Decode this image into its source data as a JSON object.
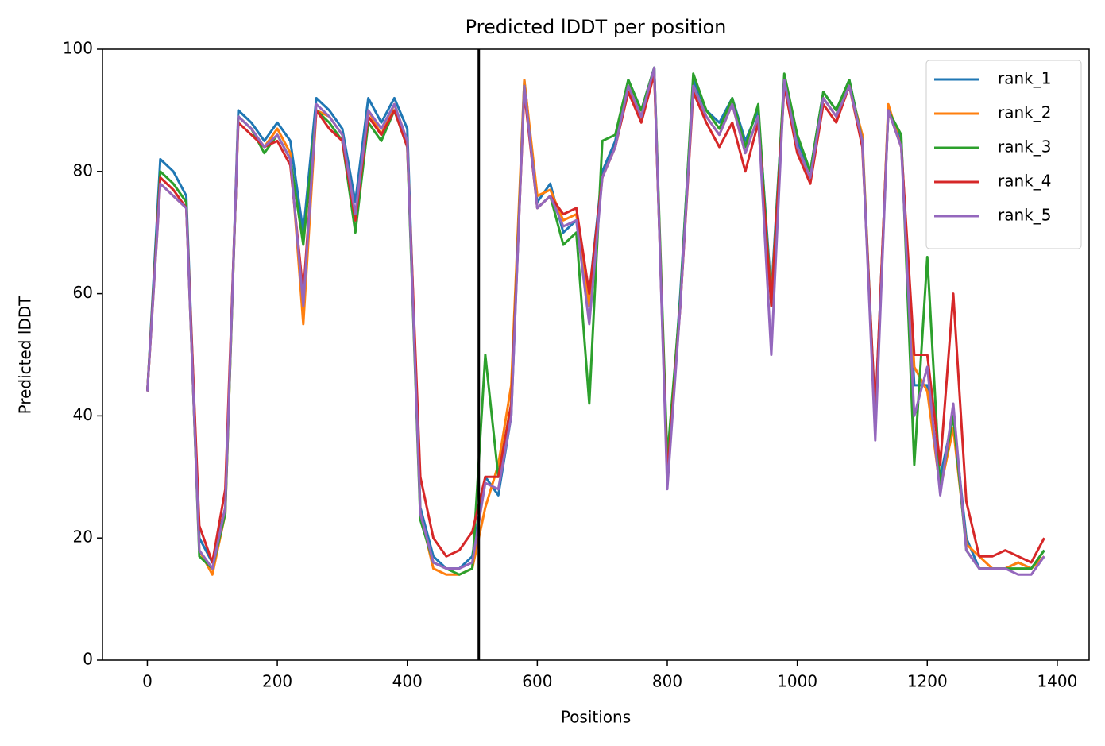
{
  "chart_data": {
    "type": "line",
    "title": "Predicted lDDT per position",
    "xlabel": "Positions",
    "ylabel": "Predicted lDDT",
    "x": [
      0,
      20,
      40,
      60,
      80,
      100,
      120,
      140,
      160,
      180,
      200,
      220,
      240,
      260,
      280,
      300,
      320,
      340,
      360,
      380,
      400,
      420,
      440,
      460,
      480,
      500,
      520,
      540,
      560,
      580,
      600,
      620,
      640,
      660,
      680,
      700,
      720,
      740,
      760,
      780,
      800,
      820,
      840,
      860,
      880,
      900,
      920,
      940,
      960,
      980,
      1000,
      1020,
      1040,
      1060,
      1080,
      1100,
      1120,
      1140,
      1160,
      1180,
      1200,
      1220,
      1240,
      1260,
      1280,
      1300,
      1320,
      1340,
      1360,
      1380
    ],
    "series": [
      {
        "name": "rank_1",
        "color": "#1f77b4",
        "values": [
          44,
          82,
          80,
          76,
          20,
          16,
          25,
          90,
          88,
          85,
          88,
          85,
          70,
          92,
          90,
          87,
          75,
          92,
          88,
          92,
          87,
          25,
          17,
          15,
          15,
          17,
          30,
          27,
          40,
          95,
          75,
          78,
          70,
          72,
          60,
          80,
          85,
          95,
          90,
          97,
          30,
          60,
          95,
          90,
          88,
          92,
          85,
          90,
          60,
          95,
          85,
          80,
          93,
          90,
          95,
          85,
          40,
          90,
          85,
          45,
          45,
          30,
          40,
          20,
          15,
          15,
          15,
          16,
          15,
          18
        ]
      },
      {
        "name": "rank_2",
        "color": "#ff7f0e",
        "values": [
          44,
          78,
          76,
          74,
          18,
          14,
          24,
          89,
          87,
          84,
          87,
          83,
          55,
          90,
          89,
          86,
          72,
          90,
          86,
          91,
          85,
          24,
          15,
          14,
          14,
          15,
          25,
          32,
          45,
          95,
          76,
          77,
          72,
          73,
          58,
          79,
          84,
          94,
          89,
          96,
          31,
          58,
          94,
          89,
          86,
          91,
          83,
          89,
          59,
          94,
          84,
          79,
          92,
          89,
          94,
          86,
          38,
          91,
          84,
          48,
          44,
          28,
          38,
          19,
          17,
          15,
          15,
          16,
          15,
          17
        ]
      },
      {
        "name": "rank_3",
        "color": "#2ca02c",
        "values": [
          44,
          80,
          78,
          75,
          17,
          15,
          24,
          89,
          87,
          83,
          86,
          82,
          68,
          90,
          88,
          85,
          70,
          88,
          85,
          90,
          84,
          23,
          16,
          15,
          14,
          15,
          50,
          30,
          42,
          94,
          74,
          76,
          68,
          70,
          42,
          85,
          86,
          95,
          90,
          97,
          33,
          59,
          96,
          90,
          87,
          92,
          84,
          91,
          58,
          96,
          86,
          80,
          93,
          90,
          95,
          85,
          38,
          90,
          86,
          32,
          66,
          28,
          40,
          18,
          15,
          15,
          15,
          15,
          15,
          18
        ]
      },
      {
        "name": "rank_4",
        "color": "#d62728",
        "values": [
          44,
          79,
          77,
          74,
          22,
          16,
          28,
          88,
          86,
          84,
          85,
          81,
          60,
          90,
          87,
          85,
          72,
          89,
          86,
          90,
          84,
          30,
          20,
          17,
          18,
          21,
          30,
          30,
          42,
          93,
          74,
          76,
          73,
          74,
          60,
          79,
          84,
          93,
          88,
          96,
          30,
          58,
          93,
          88,
          84,
          88,
          80,
          88,
          58,
          94,
          83,
          78,
          91,
          88,
          94,
          84,
          40,
          90,
          84,
          50,
          50,
          32,
          60,
          26,
          17,
          17,
          18,
          17,
          16,
          20
        ]
      },
      {
        "name": "rank_5",
        "color": "#9467bd",
        "values": [
          44,
          78,
          76,
          74,
          18,
          15,
          25,
          89,
          87,
          84,
          86,
          82,
          58,
          91,
          89,
          86,
          73,
          90,
          87,
          91,
          85,
          24,
          16,
          15,
          15,
          16,
          29,
          28,
          40,
          94,
          74,
          76,
          71,
          72,
          55,
          79,
          84,
          94,
          89,
          97,
          28,
          58,
          94,
          89,
          86,
          91,
          83,
          89,
          50,
          95,
          84,
          79,
          92,
          89,
          94,
          85,
          36,
          90,
          84,
          40,
          48,
          27,
          42,
          18,
          15,
          15,
          15,
          14,
          14,
          17
        ]
      }
    ],
    "vlines": [
      510
    ],
    "vline_color": "#000000",
    "xlim": [
      -69,
      1449
    ],
    "xticks": [
      0,
      200,
      400,
      600,
      800,
      1000,
      1200,
      1400
    ],
    "ylim": [
      0,
      100
    ],
    "yticks": [
      0,
      20,
      40,
      60,
      80,
      100
    ],
    "grid": false,
    "legend": "upper right"
  }
}
